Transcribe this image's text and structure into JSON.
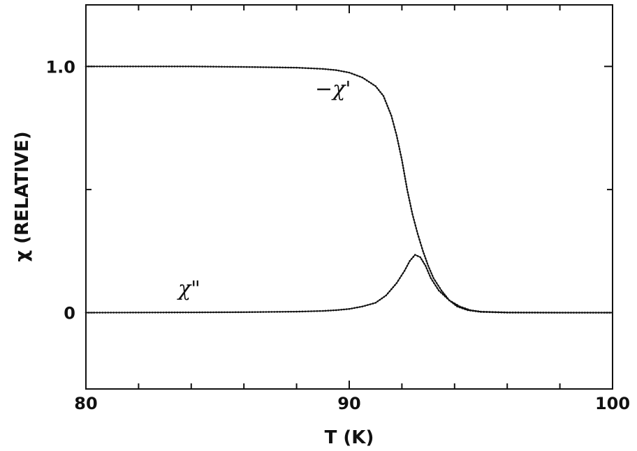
{
  "chart_data": {
    "type": "line",
    "title": "",
    "xlabel": "T (K)",
    "ylabel": "χ (RELATIVE)",
    "xlim": [
      80,
      100
    ],
    "ylim": [
      -0.31,
      1.25
    ],
    "x_ticks": [
      80,
      90,
      100
    ],
    "x_tick_labels": [
      "80",
      "90",
      "100"
    ],
    "x_minor_step": 2,
    "y_ticks": [
      0,
      1.0
    ],
    "y_tick_labels": [
      "0",
      "1.0"
    ],
    "y_minor_ticks": [
      0.5
    ],
    "grid": false,
    "legend": "none",
    "series": [
      {
        "name": "−χ'",
        "label_at": [
          88.7,
          0.88
        ],
        "x": [
          80,
          82,
          84,
          86,
          88,
          89,
          89.5,
          90,
          90.5,
          91,
          91.3,
          91.6,
          91.8,
          92.0,
          92.2,
          92.4,
          92.6,
          92.8,
          93.0,
          93.2,
          93.5,
          93.8,
          94.1,
          94.5,
          95,
          96,
          98,
          100
        ],
        "y": [
          1.0,
          1.0,
          1.0,
          0.998,
          0.995,
          0.99,
          0.985,
          0.975,
          0.955,
          0.92,
          0.88,
          0.8,
          0.72,
          0.62,
          0.5,
          0.4,
          0.32,
          0.25,
          0.19,
          0.14,
          0.09,
          0.05,
          0.025,
          0.01,
          0.003,
          0.0,
          0.0,
          0.0
        ]
      },
      {
        "name": "χ\"",
        "label_at": [
          83.5,
          0.07
        ],
        "x": [
          80,
          84,
          86,
          88,
          89,
          89.5,
          90,
          90.5,
          91,
          91.4,
          91.8,
          92.1,
          92.3,
          92.5,
          92.7,
          92.9,
          93.1,
          93.4,
          93.8,
          94.2,
          94.6,
          95,
          96,
          98,
          100
        ],
        "y": [
          0.0,
          0.001,
          0.002,
          0.004,
          0.007,
          0.01,
          0.015,
          0.025,
          0.04,
          0.07,
          0.12,
          0.17,
          0.21,
          0.235,
          0.225,
          0.19,
          0.14,
          0.09,
          0.05,
          0.025,
          0.01,
          0.004,
          0.001,
          0.0,
          0.0
        ]
      }
    ]
  }
}
